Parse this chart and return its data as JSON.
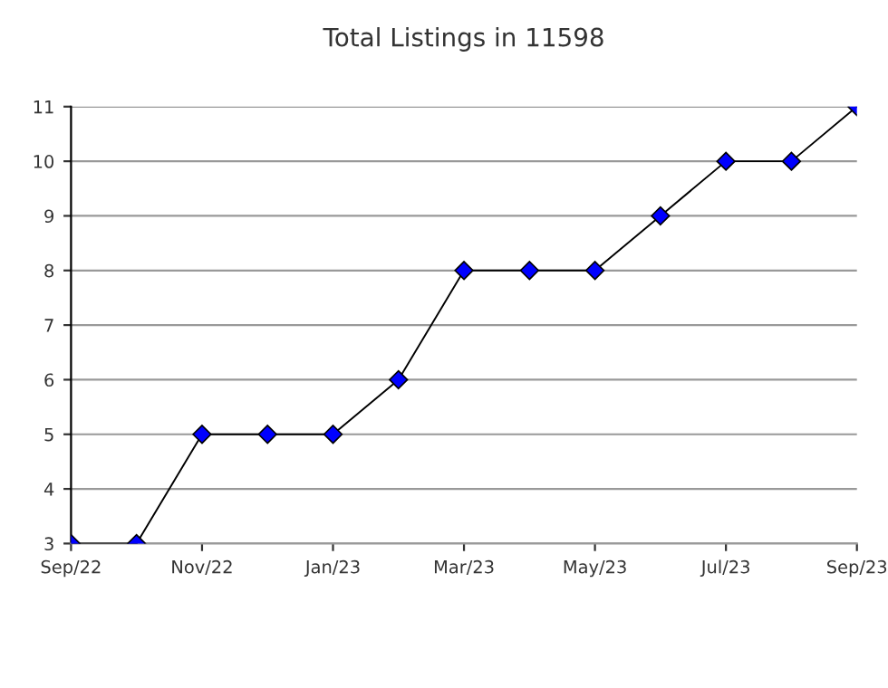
{
  "chart_data": {
    "type": "line",
    "title": "Total Listings in 11598",
    "categories": [
      "Sep/22",
      null,
      "Nov/22",
      null,
      "Jan/23",
      null,
      "Mar/23",
      null,
      "May/23",
      null,
      "Jul/23",
      null,
      "Sep/23"
    ],
    "series": [
      {
        "color": "#0000ff",
        "values": [
          3,
          3,
          5,
          5,
          5,
          6,
          8,
          8,
          8,
          9,
          10,
          10,
          11
        ]
      }
    ],
    "ylim": [
      3,
      11
    ],
    "yticks": [
      3,
      4,
      5,
      6,
      7,
      8,
      9,
      10,
      11
    ],
    "grid": "y",
    "marker": "diamond",
    "line_style": "solid",
    "legend": false
  }
}
